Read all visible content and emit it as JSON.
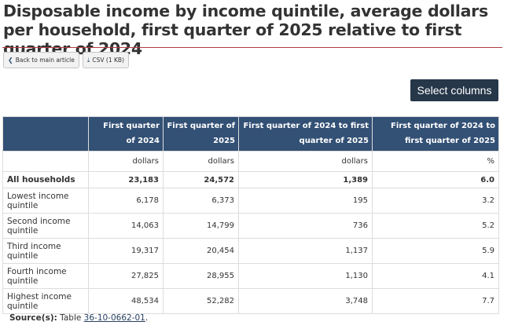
{
  "title": "Disposable income by income quintile, average dollars per household, first quarter of 2025 relative to first quarter of 2024",
  "buttons": {
    "back": "Back to main article",
    "csv": "CSV (1 KB)",
    "select_columns": "Select columns"
  },
  "table": {
    "headers": [
      "",
      "First quarter of 2024",
      "First quarter of 2025",
      "First quarter of 2024 to first quarter of 2025",
      "First quarter of 2024 to first quarter of 2025"
    ],
    "units": [
      "",
      "dollars",
      "dollars",
      "dollars",
      "%"
    ],
    "rows": [
      [
        "All households",
        "23,183",
        "24,572",
        "1,389",
        "6.0"
      ],
      [
        "Lowest income quintile",
        "6,178",
        "6,373",
        "195",
        "3.2"
      ],
      [
        "Second income quintile",
        "14,063",
        "14,799",
        "736",
        "5.2"
      ],
      [
        "Third income quintile",
        "19,317",
        "20,454",
        "1,137",
        "5.9"
      ],
      [
        "Fourth income quintile",
        "27,825",
        "28,955",
        "1,130",
        "4.1"
      ],
      [
        "Highest income quintile",
        "48,534",
        "52,282",
        "3,748",
        "7.7"
      ]
    ]
  },
  "source": {
    "label": "Source(s):",
    "text": "Table",
    "link": "36-10-0662-01",
    "end": "."
  },
  "colors": {
    "header_bg": "#335075",
    "rule": "#af3c43",
    "select_btn": "#26374a"
  }
}
